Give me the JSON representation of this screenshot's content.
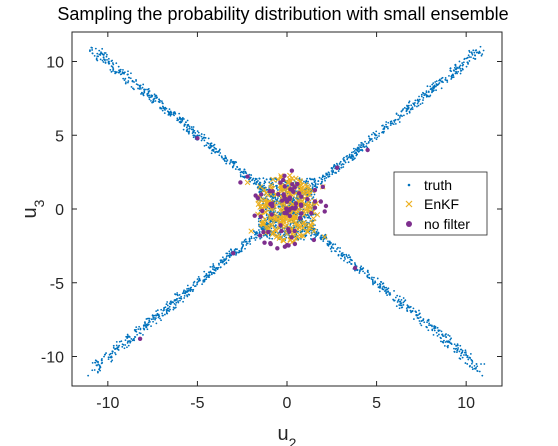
{
  "chart_data": {
    "type": "scatter",
    "title": "Sampling the probability distribution with small ensemble",
    "xlabel": "u",
    "xlabel_sub": "2",
    "ylabel": "u",
    "ylabel_sub": "3",
    "xlim": [
      -12,
      12
    ],
    "ylim": [
      -12,
      12
    ],
    "xticks": [
      -10,
      -5,
      0,
      5,
      10
    ],
    "yticks": [
      -10,
      -5,
      0,
      5,
      10
    ],
    "xtick_labels": [
      "-10",
      "-5",
      "0",
      "5",
      "10"
    ],
    "ytick_labels": [
      "-10",
      "-5",
      "0",
      "5",
      "10"
    ],
    "grid": false,
    "legend_position": "right",
    "series": [
      {
        "name": "truth",
        "marker": "dot",
        "color": "#0072BD",
        "description_shape": "X-shaped cloud along the lines u3 = u2 and u3 = -u2, dense near origin",
        "points": [
          [
            -11,
            10.7
          ],
          [
            10.8,
            11
          ],
          [
            -11.1,
            -11.3
          ],
          [
            10.9,
            -11.3
          ],
          [
            -9.8,
            9.3
          ],
          [
            -9,
            8.5
          ],
          [
            -8,
            7.7
          ],
          [
            -7,
            6.8
          ],
          [
            -6,
            5.9
          ],
          [
            -5,
            5
          ],
          [
            -4,
            4.1
          ],
          [
            -3,
            3.2
          ],
          [
            -2,
            2.3
          ],
          [
            9.2,
            8.9
          ],
          [
            8,
            7.7
          ],
          [
            7,
            6.9
          ],
          [
            6,
            5.9
          ],
          [
            5,
            5
          ],
          [
            4,
            4.1
          ],
          [
            3,
            3.2
          ],
          [
            2,
            2.2
          ],
          [
            -9.6,
            -9.5
          ],
          [
            -8.5,
            -8.2
          ],
          [
            -7.5,
            -7.2
          ],
          [
            -6.5,
            -6.3
          ],
          [
            -5.5,
            -5.4
          ],
          [
            -4.5,
            -4.4
          ],
          [
            -3.5,
            -3.5
          ],
          [
            -2.5,
            -2.6
          ],
          [
            9.5,
            -9.6
          ],
          [
            8.4,
            -8.6
          ],
          [
            7.5,
            -7.6
          ],
          [
            6.5,
            -6.5
          ],
          [
            5.5,
            -5.5
          ],
          [
            4.5,
            -4.5
          ],
          [
            3.5,
            -3.6
          ],
          [
            2.5,
            -2.6
          ],
          [
            0,
            0
          ],
          [
            0.5,
            -0.4
          ],
          [
            -0.6,
            0.5
          ],
          [
            1,
            1.2
          ],
          [
            -1.1,
            -1
          ],
          [
            1.3,
            -1.4
          ],
          [
            -1.4,
            1.2
          ]
        ]
      },
      {
        "name": "EnKF",
        "marker": "x",
        "color": "#EDB120",
        "description_shape": "compact cross-shaped cluster within about |u2|,|u3| < 2.5",
        "points": [
          [
            -1.5,
            1.5
          ],
          [
            -1,
            0.5
          ],
          [
            0,
            0
          ],
          [
            0.5,
            -0.5
          ],
          [
            1,
            1
          ],
          [
            1.5,
            -1.5
          ],
          [
            -2,
            -1.5
          ],
          [
            2,
            1.5
          ],
          [
            -0.5,
            2
          ],
          [
            0.5,
            -2
          ],
          [
            1.2,
            0.2
          ],
          [
            -1.2,
            -0.2
          ],
          [
            0.2,
            1.3
          ],
          [
            -0.2,
            -1.3
          ],
          [
            -2.2,
            1.8
          ],
          [
            2.1,
            -1.9
          ]
        ]
      },
      {
        "name": "no filter",
        "marker": "filled-circle",
        "color": "#7E2F8E",
        "description_shape": "sparse points, cluster near origin plus a few along the arms",
        "points": [
          [
            -5,
            4.8
          ],
          [
            4.5,
            4
          ],
          [
            -8.2,
            -8.8
          ],
          [
            3.8,
            -4
          ],
          [
            -2.6,
            1.8
          ],
          [
            2,
            1.5
          ],
          [
            -1.5,
            -1.8
          ],
          [
            1.5,
            -2.1
          ],
          [
            -3,
            -3
          ],
          [
            0,
            0.5
          ],
          [
            -0.8,
            1.2
          ],
          [
            0.8,
            -0.3
          ],
          [
            2.8,
            2.8
          ],
          [
            -2.2,
            2.2
          ]
        ]
      }
    ],
    "legend": [
      {
        "label": "truth",
        "marker": "dot",
        "color": "#0072BD"
      },
      {
        "label": "EnKF",
        "marker": "x",
        "color": "#EDB120"
      },
      {
        "label": "no filter",
        "marker": "filled-circle",
        "color": "#7E2F8E"
      }
    ]
  }
}
